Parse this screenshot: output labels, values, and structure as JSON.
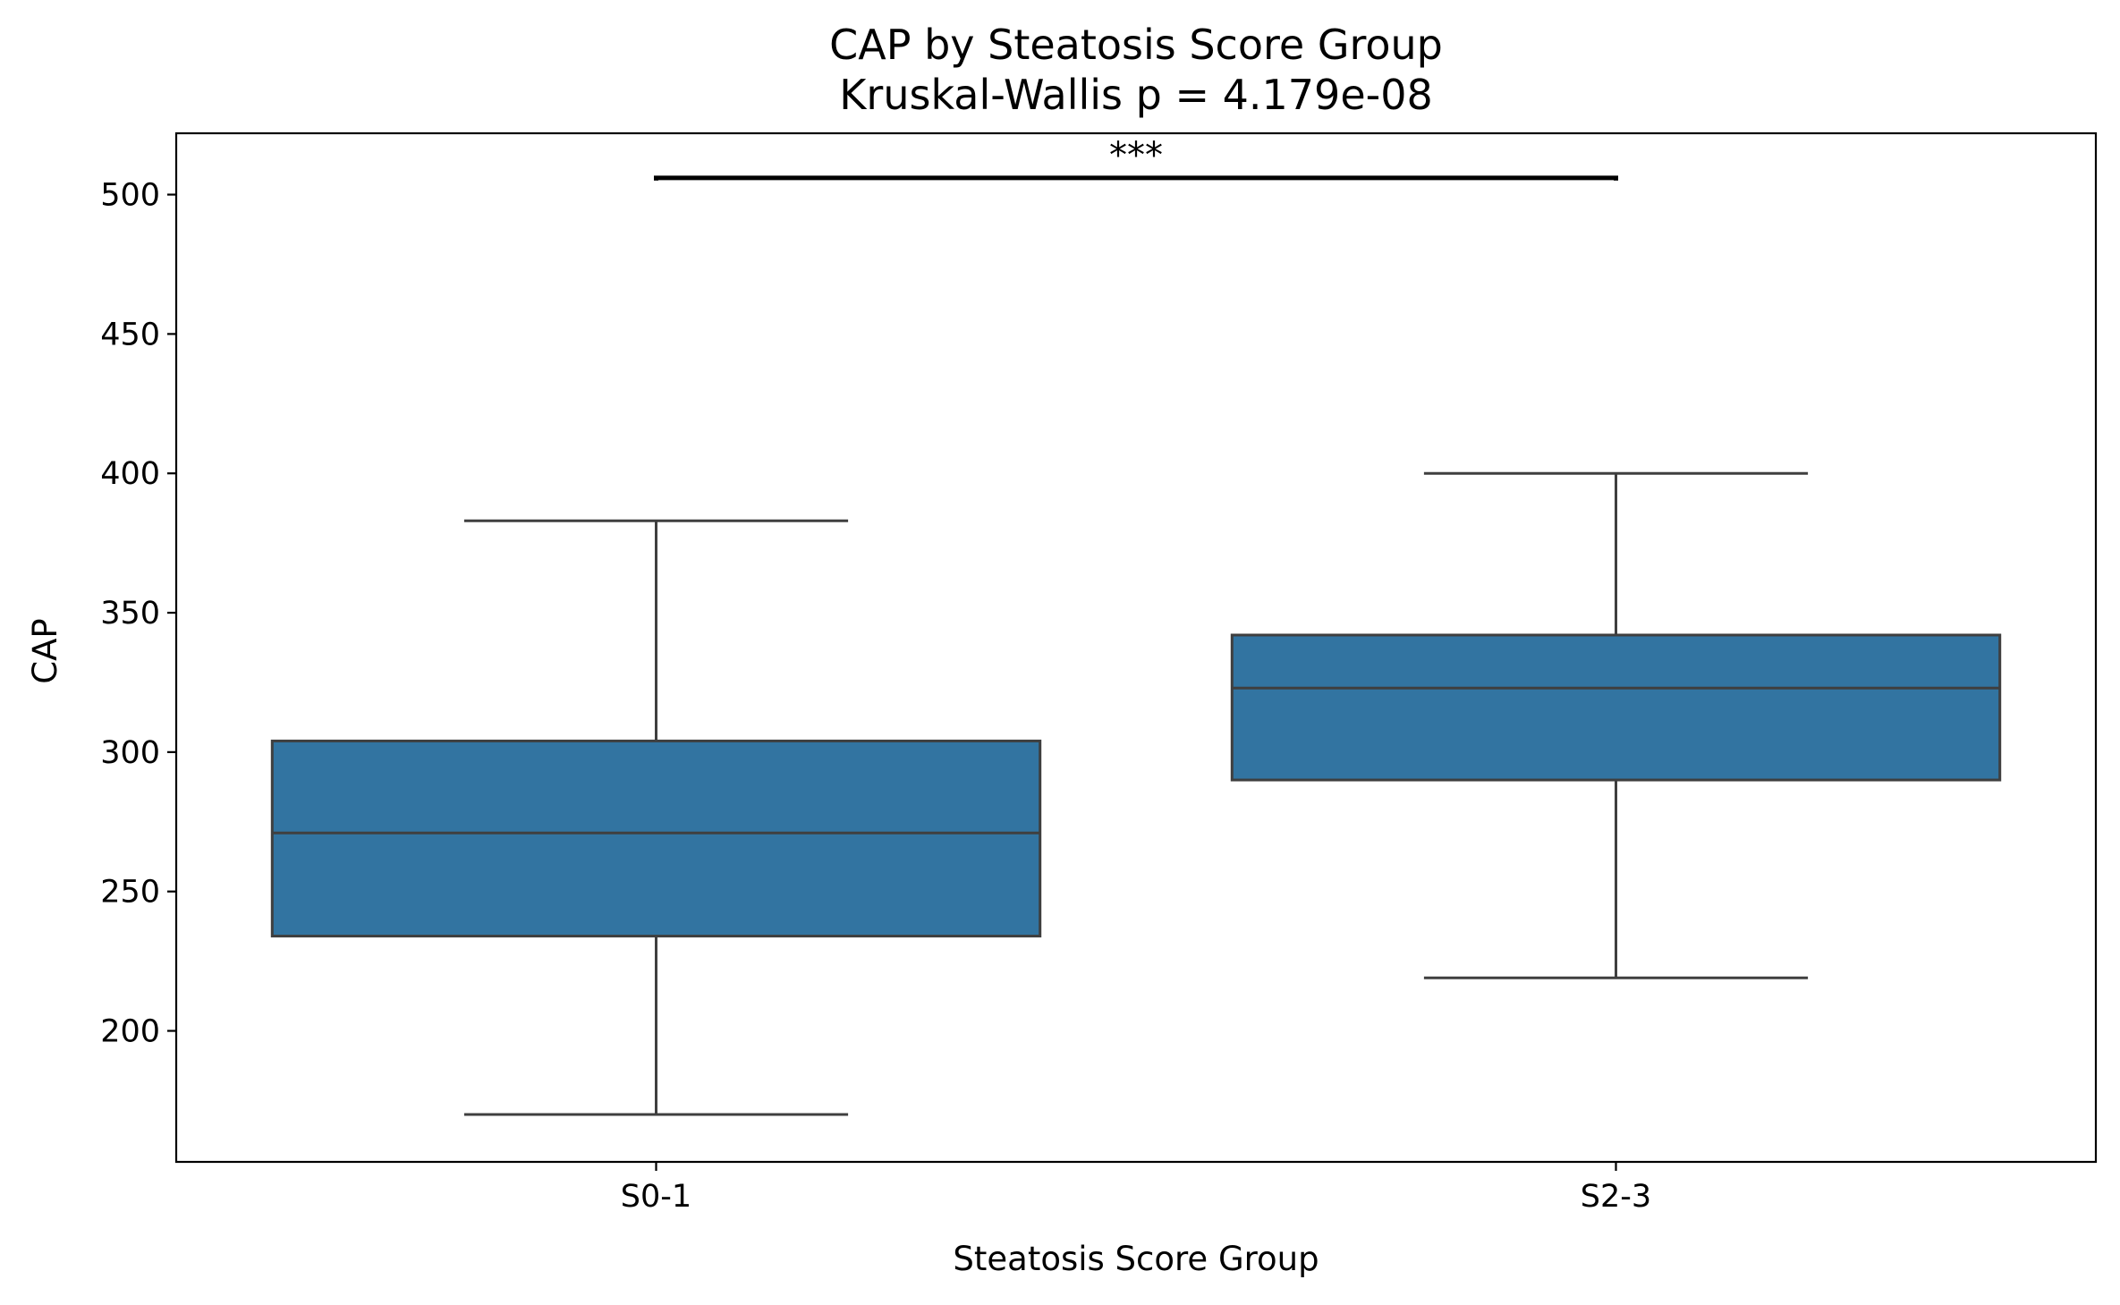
{
  "chart_data": {
    "type": "box",
    "title": "CAP by Steatosis Score Group",
    "subtitle": "Kruskal-Wallis p = 4.179e-08",
    "xlabel": "Steatosis Score Group",
    "ylabel": "CAP",
    "ylim": [
      153,
      522
    ],
    "yticks": [
      200,
      250,
      300,
      350,
      400,
      450,
      500
    ],
    "grid": false,
    "box_color": "#3274a1",
    "line_color": "#3f3f3f",
    "categories": [
      "S0-1",
      "S2-3"
    ],
    "boxes": [
      {
        "category": "S0-1",
        "whisker_low": 170,
        "q1": 234,
        "median": 271,
        "q3": 304,
        "whisker_high": 383
      },
      {
        "category": "S2-3",
        "whisker_low": 219,
        "q1": 290,
        "median": 323,
        "q3": 342,
        "whisker_high": 400
      }
    ],
    "significance": {
      "from": "S0-1",
      "to": "S2-3",
      "y": 506,
      "label": "***"
    }
  }
}
